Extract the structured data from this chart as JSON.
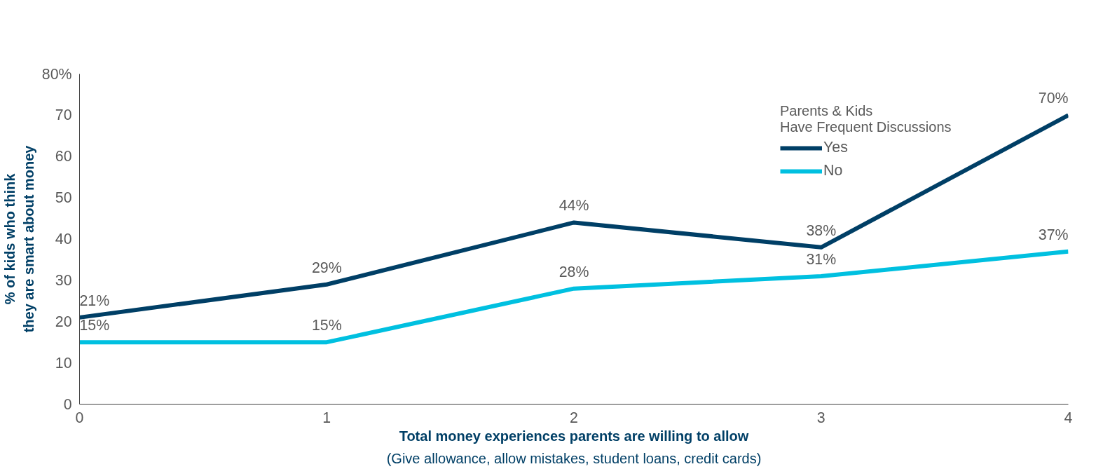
{
  "chart_data": {
    "type": "line",
    "xlabel": "Total money experiences parents are willing to allow",
    "ylabel": "% of kids who think they are smart about money",
    "legend_title": "Parents & Kids Have Frequent Discussions",
    "annotations": [
      "(Give allowance, allow mistakes, student loans, credit cards)"
    ],
    "x": [
      0,
      1,
      2,
      3,
      4
    ],
    "xlim": [
      0,
      4
    ],
    "xticks": [
      0,
      1,
      2,
      3,
      4
    ],
    "ylim": [
      0,
      80
    ],
    "yticks": [
      {
        "value": 0,
        "label": "0"
      },
      {
        "value": 10,
        "label": "10"
      },
      {
        "value": 20,
        "label": "20"
      },
      {
        "value": 30,
        "label": "30"
      },
      {
        "value": 40,
        "label": "40"
      },
      {
        "value": 50,
        "label": "50"
      },
      {
        "value": 60,
        "label": "60"
      },
      {
        "value": 70,
        "label": "70"
      },
      {
        "value": 80,
        "label": "80%"
      }
    ],
    "series": [
      {
        "name": "Yes",
        "color": "#003f66",
        "values": [
          21,
          29,
          44,
          38,
          70
        ],
        "value_labels": [
          "21%",
          "29%",
          "44%",
          "38%",
          "70%"
        ]
      },
      {
        "name": "No",
        "color": "#00c0e0",
        "values": [
          15,
          15,
          28,
          31,
          37
        ],
        "value_labels": [
          "15%",
          "15%",
          "28%",
          "31%",
          "37%"
        ]
      }
    ],
    "grid": false,
    "legend": "top right",
    "marker": "none",
    "line_style": "solid"
  }
}
